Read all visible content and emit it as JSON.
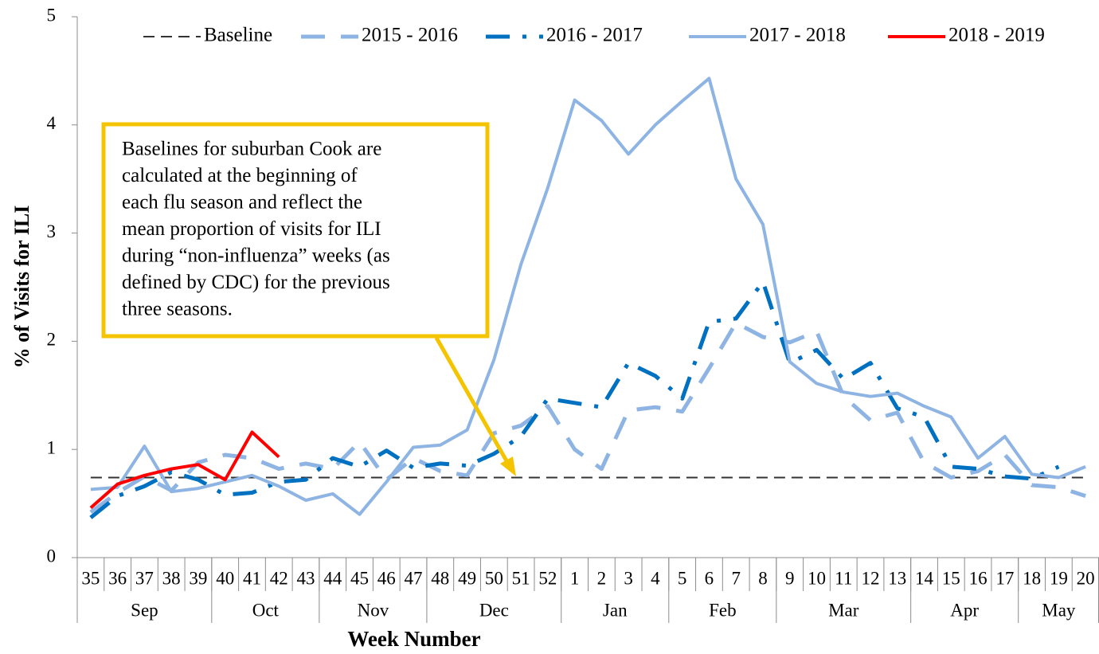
{
  "chart_data": {
    "type": "line",
    "x_label": "Week Number",
    "y_label": "% of Visits for ILI",
    "categories": [
      "35",
      "36",
      "37",
      "38",
      "39",
      "40",
      "41",
      "42",
      "43",
      "44",
      "45",
      "46",
      "47",
      "48",
      "49",
      "50",
      "51",
      "52",
      "1",
      "2",
      "3",
      "4",
      "5",
      "6",
      "7",
      "8",
      "9",
      "10",
      "11",
      "12",
      "13",
      "14",
      "15",
      "16",
      "17",
      "18",
      "19",
      "20"
    ],
    "months": [
      "Sep",
      "Sep",
      "Sep",
      "Sep",
      "Sep",
      "Oct",
      "Oct",
      "Oct",
      "Oct",
      "Nov",
      "Nov",
      "Nov",
      "Nov",
      "Dec",
      "Dec",
      "Dec",
      "Dec",
      "Dec",
      "Jan",
      "Jan",
      "Jan",
      "Jan",
      "Feb",
      "Feb",
      "Feb",
      "Feb",
      "Mar",
      "Mar",
      "Mar",
      "Mar",
      "Mar",
      "Apr",
      "Apr",
      "Apr",
      "Apr",
      "May",
      "May",
      "May"
    ],
    "ylim": [
      0,
      5
    ],
    "yticks": [
      0,
      1,
      2,
      3,
      4,
      5
    ],
    "series": [
      {
        "name": "Baseline",
        "color": "#333333",
        "style": "dashed-thin",
        "values": [
          0.74,
          0.74,
          0.74,
          0.74,
          0.74,
          0.74,
          0.74,
          0.74,
          0.74,
          0.74,
          0.74,
          0.74,
          0.74,
          0.74,
          0.74,
          0.74,
          0.74,
          0.74,
          0.74,
          0.74,
          0.74,
          0.74,
          0.74,
          0.74,
          0.74,
          0.74,
          0.74,
          0.74,
          0.74,
          0.74,
          0.74,
          0.74,
          0.74,
          0.74,
          0.74,
          0.74,
          0.74,
          0.74
        ]
      },
      {
        "name": "2015 - 2016",
        "color": "#8eb4e3",
        "style": "dashed",
        "values": [
          0.42,
          0.6,
          0.75,
          0.62,
          0.88,
          0.95,
          0.92,
          0.82,
          0.87,
          0.82,
          1.07,
          0.72,
          0.92,
          0.8,
          0.76,
          1.15,
          1.22,
          1.4,
          1.0,
          0.82,
          1.36,
          1.39,
          1.35,
          1.75,
          2.17,
          2.04,
          1.99,
          2.09,
          1.49,
          1.27,
          1.34,
          0.88,
          0.74,
          0.8,
          0.95,
          0.67,
          0.65,
          0.57
        ]
      },
      {
        "name": "2016 - 2017",
        "color": "#0070c0",
        "style": "dash-dot",
        "values": [
          0.37,
          0.57,
          0.66,
          0.79,
          0.72,
          0.58,
          0.6,
          0.7,
          0.72,
          0.92,
          0.84,
          0.99,
          0.83,
          0.87,
          0.85,
          0.96,
          1.12,
          1.47,
          1.43,
          1.39,
          1.8,
          1.68,
          1.47,
          2.18,
          2.21,
          2.55,
          1.8,
          1.92,
          1.65,
          1.8,
          1.38,
          1.3,
          0.84,
          0.82,
          0.75,
          0.73,
          0.84,
          null
        ]
      },
      {
        "name": "2017 - 2018",
        "color": "#8eb4e3",
        "style": "solid",
        "values": [
          0.63,
          0.65,
          1.03,
          0.61,
          0.64,
          0.7,
          0.76,
          0.66,
          0.53,
          0.59,
          0.4,
          0.7,
          1.02,
          1.04,
          1.18,
          1.83,
          2.71,
          3.42,
          4.23,
          4.04,
          3.73,
          4.0,
          4.22,
          4.43,
          3.5,
          3.08,
          1.81,
          1.61,
          1.53,
          1.49,
          1.52,
          1.4,
          1.3,
          0.92,
          1.12,
          0.77,
          0.74,
          0.84
        ]
      },
      {
        "name": "2018 - 2019",
        "color": "#ff0000",
        "style": "solid",
        "values": [
          0.46,
          0.68,
          0.76,
          0.82,
          0.86,
          0.72,
          1.16,
          0.93,
          null,
          null,
          null,
          null,
          null,
          null,
          null,
          null,
          null,
          null,
          null,
          null,
          null,
          null,
          null,
          null,
          null,
          null,
          null,
          null,
          null,
          null,
          null,
          null,
          null,
          null,
          null,
          null,
          null,
          null
        ]
      }
    ],
    "annotation": [
      "Baselines for suburban Cook are",
      "calculated at the beginning of",
      "each flu season and reflect the",
      "mean proportion of visits for ILI",
      "during “non-influenza” weeks (as",
      "defined by CDC) for the previous",
      "three seasons."
    ],
    "annotation_color": "#f5c400"
  }
}
